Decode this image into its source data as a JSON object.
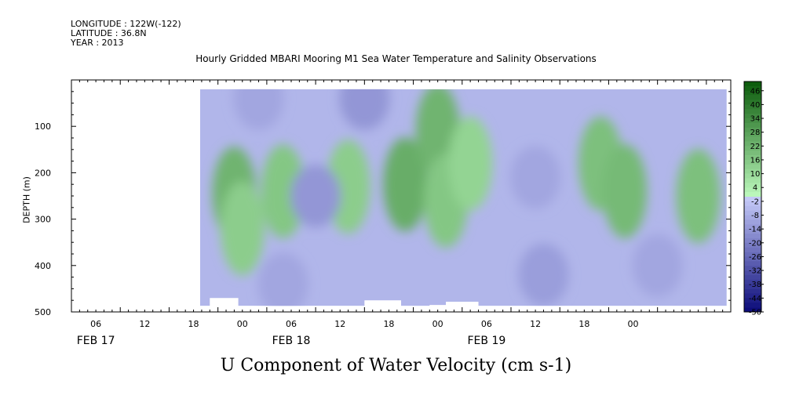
{
  "header": {
    "longitude": "LONGITUDE : 122W(-122)",
    "latitude": "LATITUDE : 36.8N",
    "year": "YEAR : 2013",
    "title": "Hourly Gridded MBARI Mooring M1 Sea Water Temperature and Salinity Observations"
  },
  "chart_data": {
    "type": "heatmap",
    "title": "Hourly Gridded MBARI Mooring M1 Sea Water Temperature and Salinity Observations",
    "xlabel": "U Component of Water Velocity (cm s-1)",
    "ylabel": "DEPTH (m)",
    "y_reversed": true,
    "ylim": [
      500,
      0
    ],
    "yticks": [
      100,
      200,
      300,
      400,
      500
    ],
    "xlim_hours": [
      0,
      81
    ],
    "xtick_labels": [
      "06",
      "12",
      "18",
      "00",
      "06",
      "12",
      "18",
      "00",
      "06",
      "12",
      "18",
      "00"
    ],
    "date_labels": [
      "FEB 17",
      "FEB 18",
      "FEB 19"
    ],
    "colorbar": {
      "min": -50,
      "max": 50,
      "step": 2,
      "labels": [
        "46",
        "40",
        "34",
        "28",
        "22",
        "16",
        "10",
        "4",
        "-2",
        "-8",
        "-14",
        "-20",
        "-26",
        "-32",
        "-38",
        "-44",
        "-50"
      ]
    },
    "data_extent": {
      "start_hour": 15.8,
      "end_hour": 80.5,
      "top_depth_m": 20,
      "bottom_depth_m": 487
    },
    "features": [
      {
        "hour": 20,
        "depth_m": 245,
        "value": 22
      },
      {
        "hour": 21,
        "depth_m": 320,
        "value": 14
      },
      {
        "hour": 26,
        "depth_m": 240,
        "value": 16
      },
      {
        "hour": 34,
        "depth_m": 230,
        "value": 14
      },
      {
        "hour": 41,
        "depth_m": 225,
        "value": 24
      },
      {
        "hour": 45,
        "depth_m": 110,
        "value": 22
      },
      {
        "hour": 46,
        "depth_m": 260,
        "value": 16
      },
      {
        "hour": 49,
        "depth_m": 180,
        "value": 12
      },
      {
        "hour": 65,
        "depth_m": 180,
        "value": 18
      },
      {
        "hour": 68,
        "depth_m": 240,
        "value": 20
      },
      {
        "hour": 77,
        "depth_m": 250,
        "value": 18
      },
      {
        "hour": 23,
        "depth_m": 40,
        "value": -10
      },
      {
        "hour": 36,
        "depth_m": 40,
        "value": -14
      },
      {
        "hour": 30,
        "depth_m": 250,
        "value": -14
      },
      {
        "hour": 57,
        "depth_m": 210,
        "value": -10
      },
      {
        "hour": 58,
        "depth_m": 420,
        "value": -12
      },
      {
        "hour": 72,
        "depth_m": 400,
        "value": -10
      },
      {
        "hour": 26,
        "depth_m": 440,
        "value": -10
      }
    ]
  }
}
